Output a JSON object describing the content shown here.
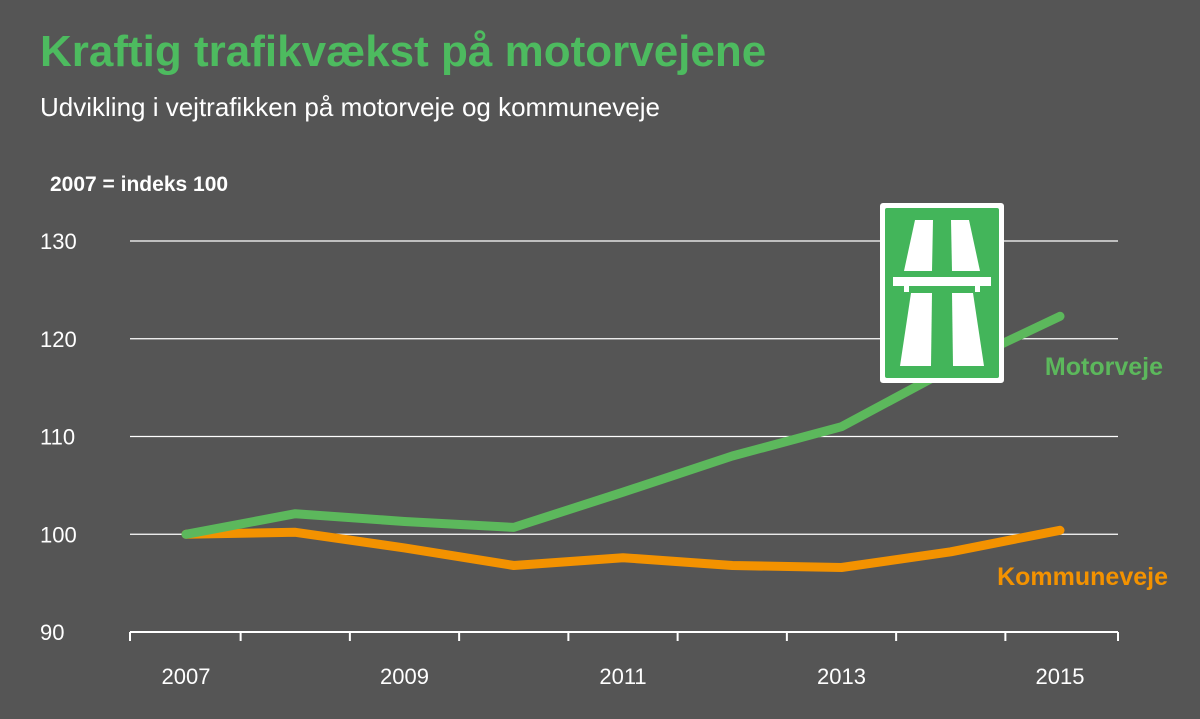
{
  "chart_data": {
    "type": "line",
    "title": "Kraftig trafikvækst på motorvejene",
    "subtitle": "Udvikling i vejtrafikken på motorveje og kommuneveje",
    "ylabel": "2007 = indeks 100",
    "xlabel": "",
    "x": [
      2007,
      2008,
      2009,
      2010,
      2011,
      2012,
      2013,
      2014,
      2015
    ],
    "x_tick_labels": [
      "2007",
      "2009",
      "2011",
      "2013",
      "2015"
    ],
    "y_ticks": [
      90,
      100,
      110,
      120,
      130
    ],
    "ylim": [
      90,
      130
    ],
    "grid": true,
    "series": [
      {
        "name": "Motorveje",
        "color": "#5cb85c",
        "values": [
          100,
          102.1,
          101.3,
          100.7,
          104.3,
          108,
          111,
          117,
          122.3
        ]
      },
      {
        "name": "Kommuneveje",
        "color": "#f39200",
        "values": [
          100,
          100.2,
          98.6,
          96.8,
          97.6,
          96.8,
          96.6,
          98.2,
          100.4
        ]
      }
    ],
    "icon": "motorway-sign-icon",
    "icon_color": "#43b55a"
  }
}
